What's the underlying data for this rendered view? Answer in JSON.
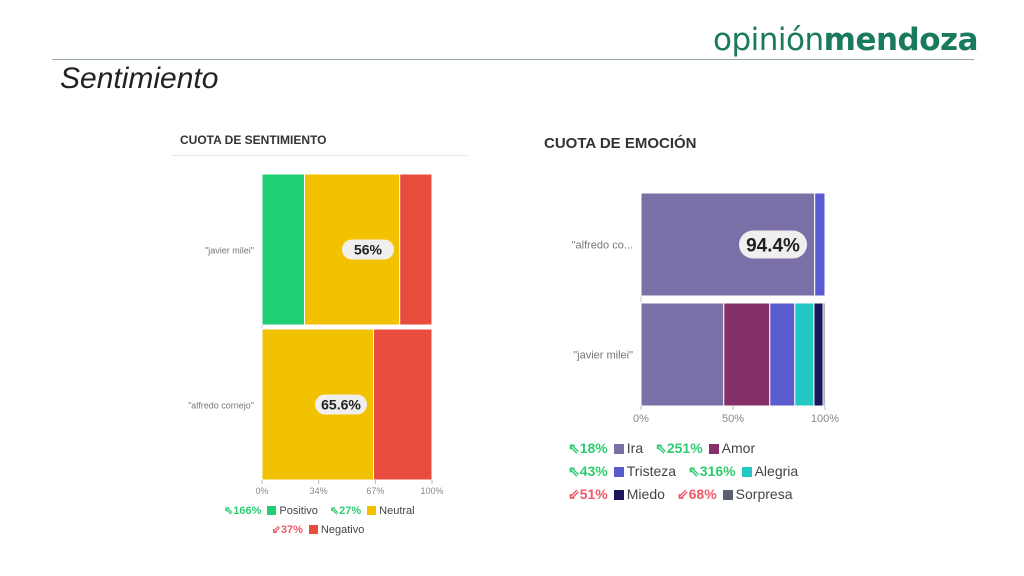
{
  "logo": {
    "light": "opinión",
    "bold": "mendoza"
  },
  "page_title": "Sentimiento",
  "chart_data": [
    {
      "type": "bar",
      "stacked": "percent",
      "orientation": "horizontal",
      "title": "CUOTA DE SENTIMIENTO",
      "categories": [
        "\"javier milei\"",
        "\"alfredo cornejo\""
      ],
      "series": [
        {
          "name": "Positivo",
          "color": "#1ecf73",
          "values": [
            25,
            0
          ],
          "change": "166%",
          "trend": "up"
        },
        {
          "name": "Neutral",
          "color": "#f2c200",
          "values": [
            56,
            65.6
          ],
          "change": "27%",
          "trend": "up"
        },
        {
          "name": "Negativo",
          "color": "#e84c3d",
          "values": [
            19,
            34.4
          ],
          "change": "37%",
          "trend": "down"
        }
      ],
      "data_labels": [
        "56%",
        "65.6%"
      ],
      "xticks": [
        "0%",
        "34%",
        "67%",
        "100%"
      ],
      "xlim": [
        0,
        100
      ]
    },
    {
      "type": "bar",
      "stacked": "percent",
      "orientation": "horizontal",
      "title": "CUOTA DE EMOCIÓN",
      "categories": [
        "\"alfredo co...",
        "\"javier milei\""
      ],
      "series": [
        {
          "name": "Ira",
          "color": "#7b6fa8",
          "values": [
            94.4,
            45
          ],
          "change": "18%",
          "trend": "up"
        },
        {
          "name": "Amor",
          "color": "#86306a",
          "values": [
            0,
            25
          ],
          "change": "251%",
          "trend": "up"
        },
        {
          "name": "Tristeza",
          "color": "#5b5bd0",
          "values": [
            5.6,
            13.6
          ],
          "change": "43%",
          "trend": "up"
        },
        {
          "name": "Alegria",
          "color": "#22c9c3",
          "values": [
            0,
            10.4
          ],
          "change": "316%",
          "trend": "up"
        },
        {
          "name": "Miedo",
          "color": "#1a1659",
          "values": [
            0,
            5
          ],
          "change": "51%",
          "trend": "down"
        },
        {
          "name": "Sorpresa",
          "color": "#5a6070",
          "values": [
            0,
            1
          ],
          "change": "68%",
          "trend": "down"
        }
      ],
      "data_labels": [
        "94.4%",
        ""
      ],
      "xticks": [
        "0%",
        "50%",
        "100%"
      ],
      "xlim": [
        0,
        100
      ]
    }
  ]
}
